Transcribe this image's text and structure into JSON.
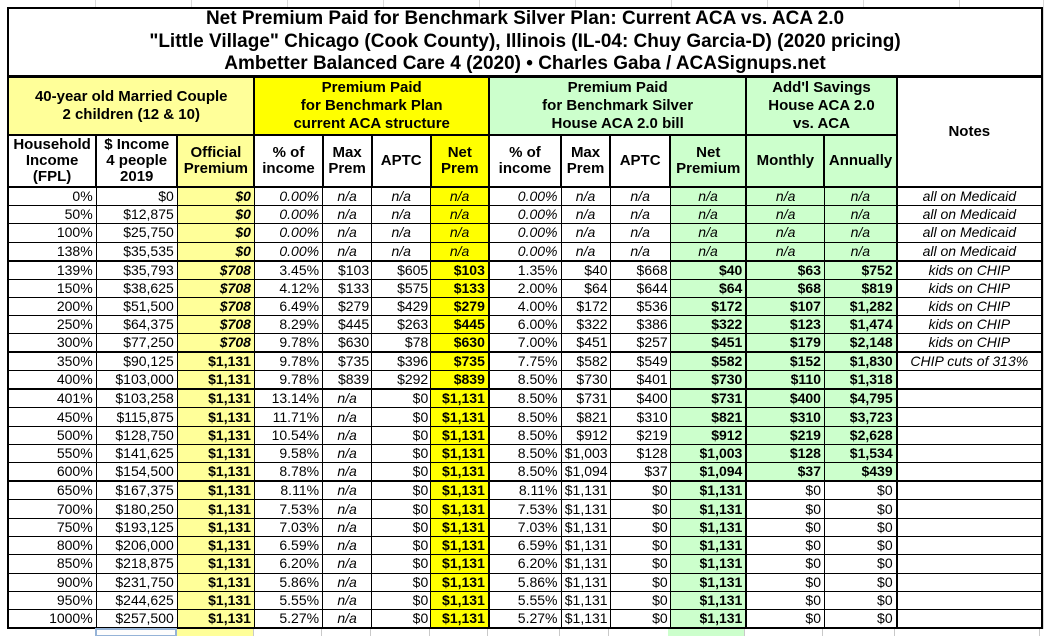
{
  "title": {
    "line1": "Net Premium Paid for Benchmark Silver Plan: Current ACA vs. ACA 2.0",
    "line2": "\"Little Village\" Chicago (Cook County), Illinois (IL-04: Chuy Garcia-D) (2020 pricing)",
    "line3": "Ambetter Balanced Care 4 (2020) • Charles Gaba / ACASignups.net"
  },
  "colors": {
    "bright_yellow": "#ffff00",
    "pale_yellow": "#ffff99",
    "light_green": "#ccffcc",
    "table_border": "#000000",
    "faint_grid": "#d9d9d9",
    "selection_border": "#95b3d7"
  },
  "chart_data": {
    "type": "table",
    "group_headers": [
      {
        "label": "40-year old Married Couple\n2 children (12 & 10)",
        "span": 3,
        "bg": "pale_yellow"
      },
      {
        "label": "Premium Paid\nfor Benchmark Plan\ncurrent ACA structure",
        "span": 4,
        "bg": "bright_yellow"
      },
      {
        "label": "Premium Paid\nfor Benchmark Silver\nHouse ACA 2.0 bill",
        "span": 4,
        "bg": "light_green"
      },
      {
        "label": "Add'l Savings\nHouse ACA 2.0\nvs. ACA",
        "span": 2,
        "bg": "light_green"
      },
      {
        "label": "Notes",
        "span": 1,
        "rowspan": 2,
        "bg": "white"
      }
    ],
    "columns": [
      "Household\nIncome\n(FPL)",
      "$ Income\n4 people\n2019",
      "Official\nPremium",
      "% of\nincome",
      "Max\nPrem",
      "APTC",
      "Net\nPrem",
      "% of\nincome",
      "Max\nPrem",
      "APTC",
      "Net\nPremium",
      "Monthly",
      "Annually"
    ],
    "rows": [
      {
        "band": "medicaid",
        "sep": false,
        "cells": [
          "0%",
          "$0",
          "$0",
          "0.00%",
          "n/a",
          "n/a",
          "n/a",
          "0.00%",
          "n/a",
          "n/a",
          "n/a",
          "n/a",
          "n/a",
          "all on Medicaid"
        ]
      },
      {
        "band": "medicaid",
        "sep": false,
        "cells": [
          "50%",
          "$12,875",
          "$0",
          "0.00%",
          "n/a",
          "n/a",
          "n/a",
          "0.00%",
          "n/a",
          "n/a",
          "n/a",
          "n/a",
          "n/a",
          "all on Medicaid"
        ]
      },
      {
        "band": "medicaid",
        "sep": false,
        "cells": [
          "100%",
          "$25,750",
          "$0",
          "0.00%",
          "n/a",
          "n/a",
          "n/a",
          "0.00%",
          "n/a",
          "n/a",
          "n/a",
          "n/a",
          "n/a",
          "all on Medicaid"
        ]
      },
      {
        "band": "medicaid",
        "sep": false,
        "cells": [
          "138%",
          "$35,535",
          "$0",
          "0.00%",
          "n/a",
          "n/a",
          "n/a",
          "0.00%",
          "n/a",
          "n/a",
          "n/a",
          "n/a",
          "n/a",
          "all on Medicaid"
        ]
      },
      {
        "band": "chip",
        "sep": true,
        "cells": [
          "139%",
          "$35,793",
          "$708",
          "3.45%",
          "$103",
          "$605",
          "$103",
          "1.35%",
          "$40",
          "$668",
          "$40",
          "$63",
          "$752",
          "kids on CHIP"
        ]
      },
      {
        "band": "chip",
        "sep": false,
        "cells": [
          "150%",
          "$38,625",
          "$708",
          "4.12%",
          "$133",
          "$575",
          "$133",
          "2.00%",
          "$64",
          "$644",
          "$64",
          "$68",
          "$819",
          "kids on CHIP"
        ]
      },
      {
        "band": "chip",
        "sep": false,
        "cells": [
          "200%",
          "$51,500",
          "$708",
          "6.49%",
          "$279",
          "$429",
          "$279",
          "4.00%",
          "$172",
          "$536",
          "$172",
          "$107",
          "$1,282",
          "kids on CHIP"
        ]
      },
      {
        "band": "chip",
        "sep": false,
        "cells": [
          "250%",
          "$64,375",
          "$708",
          "8.29%",
          "$445",
          "$263",
          "$445",
          "6.00%",
          "$322",
          "$386",
          "$322",
          "$123",
          "$1,474",
          "kids on CHIP"
        ]
      },
      {
        "band": "chip",
        "sep": false,
        "cells": [
          "300%",
          "$77,250",
          "$708",
          "9.78%",
          "$630",
          "$78",
          "$630",
          "7.00%",
          "$451",
          "$257",
          "$451",
          "$179",
          "$2,148",
          "kids on CHIP"
        ]
      },
      {
        "band": "mid",
        "sep": true,
        "cells": [
          "350%",
          "$90,125",
          "$1,131",
          "9.78%",
          "$735",
          "$396",
          "$735",
          "7.75%",
          "$582",
          "$549",
          "$582",
          "$152",
          "$1,830",
          "CHIP cuts of 313%"
        ]
      },
      {
        "band": "mid",
        "sep": false,
        "cells": [
          "400%",
          "$103,000",
          "$1,131",
          "9.78%",
          "$839",
          "$292",
          "$839",
          "8.50%",
          "$730",
          "$401",
          "$730",
          "$110",
          "$1,318",
          ""
        ]
      },
      {
        "band": "upper",
        "sep": true,
        "cells": [
          "401%",
          "$103,258",
          "$1,131",
          "13.14%",
          "n/a",
          "$0",
          "$1,131",
          "8.50%",
          "$731",
          "$400",
          "$731",
          "$400",
          "$4,795",
          ""
        ]
      },
      {
        "band": "upper",
        "sep": false,
        "cells": [
          "450%",
          "$115,875",
          "$1,131",
          "11.71%",
          "n/a",
          "$0",
          "$1,131",
          "8.50%",
          "$821",
          "$310",
          "$821",
          "$310",
          "$3,723",
          ""
        ]
      },
      {
        "band": "upper",
        "sep": false,
        "cells": [
          "500%",
          "$128,750",
          "$1,131",
          "10.54%",
          "n/a",
          "$0",
          "$1,131",
          "8.50%",
          "$912",
          "$219",
          "$912",
          "$219",
          "$2,628",
          ""
        ]
      },
      {
        "band": "upper",
        "sep": false,
        "cells": [
          "550%",
          "$141,625",
          "$1,131",
          "9.58%",
          "n/a",
          "$0",
          "$1,131",
          "8.50%",
          "$1,003",
          "$128",
          "$1,003",
          "$128",
          "$1,534",
          ""
        ]
      },
      {
        "band": "upper",
        "sep": false,
        "cells": [
          "600%",
          "$154,500",
          "$1,131",
          "8.78%",
          "n/a",
          "$0",
          "$1,131",
          "8.50%",
          "$1,094",
          "$37",
          "$1,094",
          "$37",
          "$439",
          ""
        ]
      },
      {
        "band": "flat",
        "sep": true,
        "cells": [
          "650%",
          "$167,375",
          "$1,131",
          "8.11%",
          "n/a",
          "$0",
          "$1,131",
          "8.11%",
          "$1,131",
          "$0",
          "$1,131",
          "$0",
          "$0",
          ""
        ]
      },
      {
        "band": "flat",
        "sep": false,
        "cells": [
          "700%",
          "$180,250",
          "$1,131",
          "7.53%",
          "n/a",
          "$0",
          "$1,131",
          "7.53%",
          "$1,131",
          "$0",
          "$1,131",
          "$0",
          "$0",
          ""
        ]
      },
      {
        "band": "flat",
        "sep": false,
        "cells": [
          "750%",
          "$193,125",
          "$1,131",
          "7.03%",
          "n/a",
          "$0",
          "$1,131",
          "7.03%",
          "$1,131",
          "$0",
          "$1,131",
          "$0",
          "$0",
          ""
        ]
      },
      {
        "band": "flat",
        "sep": false,
        "cells": [
          "800%",
          "$206,000",
          "$1,131",
          "6.59%",
          "n/a",
          "$0",
          "$1,131",
          "6.59%",
          "$1,131",
          "$0",
          "$1,131",
          "$0",
          "$0",
          ""
        ]
      },
      {
        "band": "flat",
        "sep": false,
        "cells": [
          "850%",
          "$218,875",
          "$1,131",
          "6.20%",
          "n/a",
          "$0",
          "$1,131",
          "6.20%",
          "$1,131",
          "$0",
          "$1,131",
          "$0",
          "$0",
          ""
        ]
      },
      {
        "band": "flat",
        "sep": false,
        "cells": [
          "900%",
          "$231,750",
          "$1,131",
          "5.86%",
          "n/a",
          "$0",
          "$1,131",
          "5.86%",
          "$1,131",
          "$0",
          "$1,131",
          "$0",
          "$0",
          ""
        ]
      },
      {
        "band": "flat",
        "sep": false,
        "cells": [
          "950%",
          "$244,625",
          "$1,131",
          "5.55%",
          "n/a",
          "$0",
          "$1,131",
          "5.55%",
          "$1,131",
          "$0",
          "$1,131",
          "$0",
          "$0",
          ""
        ]
      },
      {
        "band": "flat",
        "sep": false,
        "cells": [
          "1000%",
          "$257,500",
          "$1,131",
          "5.27%",
          "n/a",
          "$0",
          "$1,131",
          "5.27%",
          "$1,131",
          "$0",
          "$1,131",
          "$0",
          "$0",
          ""
        ]
      }
    ]
  }
}
